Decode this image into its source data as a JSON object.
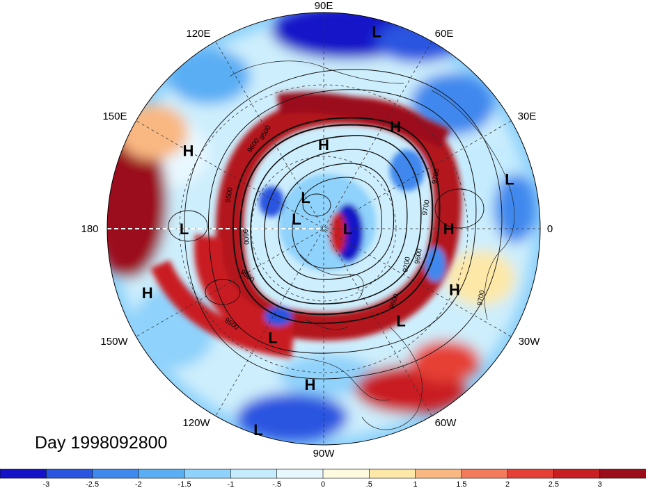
{
  "title": "Day 1998092800",
  "longitude_labels": [
    "90E",
    "60E",
    "30E",
    "0",
    "30W",
    "60W",
    "90W",
    "120W",
    "150W",
    "180",
    "150E",
    "120E"
  ],
  "pressure_systems": [
    {
      "type": "L",
      "lon": 75,
      "lat": 5
    },
    {
      "type": "H",
      "lon": 90,
      "lat": 55
    },
    {
      "type": "H",
      "lon": 55,
      "lat": 38
    },
    {
      "type": "L",
      "lon": 15,
      "lat": 10
    },
    {
      "type": "H",
      "lon": 150,
      "lat": 25
    },
    {
      "type": "H",
      "lon": 0,
      "lat": 38
    },
    {
      "type": "L",
      "lon": 180,
      "lat": 32
    },
    {
      "type": "H",
      "lon": -160,
      "lat": 12
    },
    {
      "type": "L",
      "lon": 120,
      "lat": 75
    },
    {
      "type": "L",
      "lon": 0,
      "lat": 80
    },
    {
      "type": "L",
      "lon": 160,
      "lat": 78
    },
    {
      "type": "L",
      "lon": -115,
      "lat": 40
    },
    {
      "type": "H",
      "lon": -25,
      "lat": 30
    },
    {
      "type": "L",
      "lon": -50,
      "lat": 40
    },
    {
      "type": "H",
      "lon": -95,
      "lat": 25
    },
    {
      "type": "L",
      "lon": -108,
      "lat": 2
    }
  ],
  "contour_labels": [
    "9500",
    "9600",
    "9700",
    "9500",
    "9600",
    "9200",
    "9600",
    "9700",
    "9500",
    "9600",
    "9500",
    "9700"
  ],
  "colorbar": {
    "ticks": [
      "-3",
      "-2.5",
      "-2",
      "-1.5",
      "-1",
      "-.5",
      "0",
      ".5",
      "1",
      "1.5",
      "2",
      "2.5",
      "3"
    ],
    "colors": [
      "#1512c8",
      "#2a55e0",
      "#3f88ee",
      "#5aaef4",
      "#8fd2fb",
      "#c4ecfe",
      "#e8f8ff",
      "#fffbe0",
      "#fde8a8",
      "#f9b882",
      "#f37b5c",
      "#e64036",
      "#c91f22",
      "#9b0d1a"
    ]
  }
}
